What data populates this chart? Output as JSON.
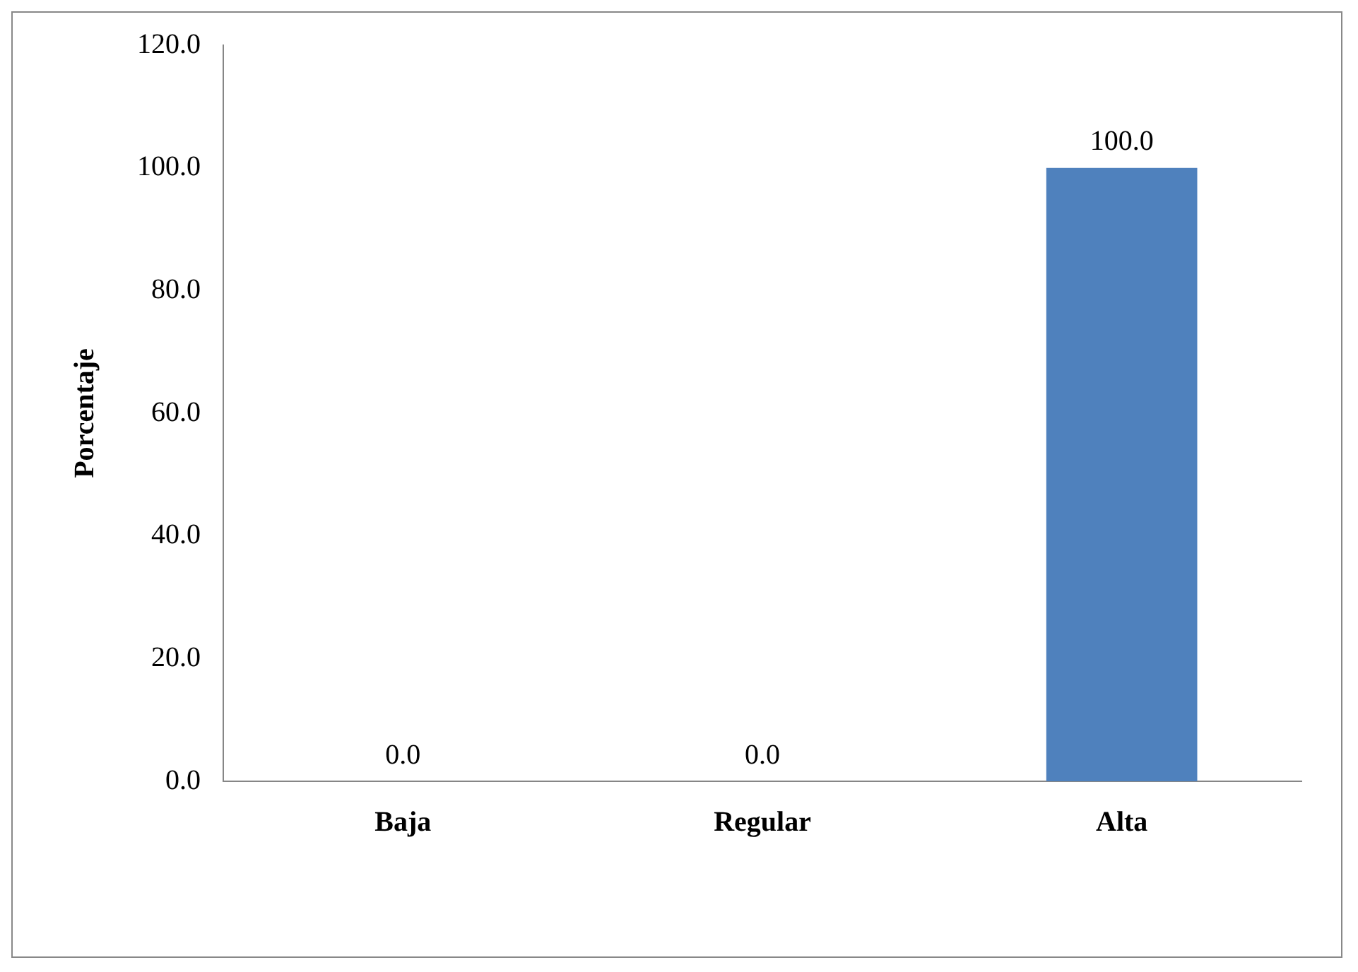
{
  "chart_data": {
    "type": "bar",
    "ylabel": "Porcentaje",
    "categories": [
      "Baja",
      "Regular",
      "Alta"
    ],
    "values": [
      0,
      0,
      100
    ],
    "color": "#4f81bd",
    "ylim": [
      0,
      120
    ],
    "yticks": [
      {
        "value": 0,
        "label": "0.0"
      },
      {
        "value": 20,
        "label": "20.0"
      },
      {
        "value": 40,
        "label": "40.0"
      },
      {
        "value": 60,
        "label": "60.0"
      },
      {
        "value": 80,
        "label": "80.0"
      },
      {
        "value": 100,
        "label": "100.0"
      },
      {
        "value": 120,
        "label": "120.0"
      }
    ],
    "value_labels": [
      "0.0",
      "0.0",
      "100.0"
    ],
    "grid": false,
    "legend": false
  }
}
